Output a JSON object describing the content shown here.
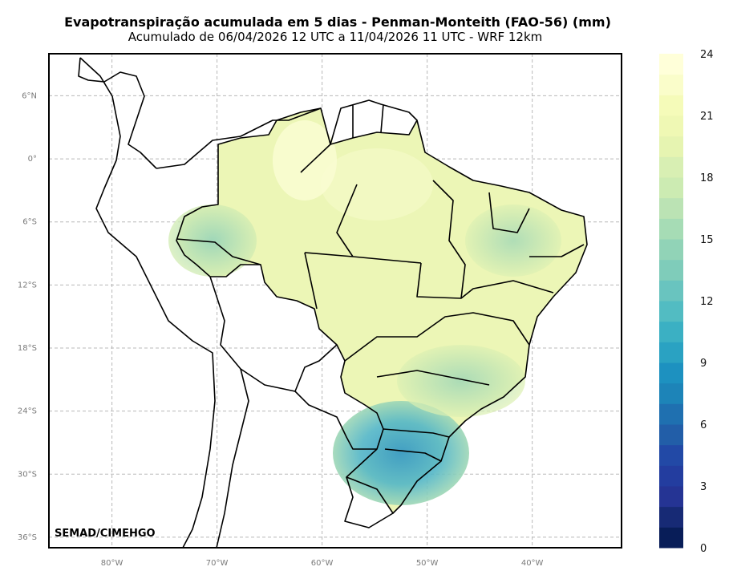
{
  "chart_data": {
    "type": "heatmap",
    "title": "Evapotranspiração acumulada em 5 dias - Penman-Monteith (FAO-56) (mm)",
    "subtitle": "Acumulado de 06/04/2026 12 UTC a 11/04/2026 11 UTC - WRF 12km",
    "lon_range": [
      -86,
      -31.5
    ],
    "lat_range": [
      -37,
      10
    ],
    "lat_ticks": [
      {
        "value": 6,
        "label": "6°N"
      },
      {
        "value": 0,
        "label": "0°"
      },
      {
        "value": -6,
        "label": "6°S"
      },
      {
        "value": -12,
        "label": "12°S"
      },
      {
        "value": -18,
        "label": "18°S"
      },
      {
        "value": -24,
        "label": "24°S"
      },
      {
        "value": -30,
        "label": "30°S"
      },
      {
        "value": -36,
        "label": "36°S"
      }
    ],
    "lon_ticks": [
      {
        "value": -80,
        "label": "80°W"
      },
      {
        "value": -70,
        "label": "70°W"
      },
      {
        "value": -60,
        "label": "60°W"
      },
      {
        "value": -50,
        "label": "50°W"
      },
      {
        "value": -40,
        "label": "40°W"
      }
    ],
    "grid": true,
    "colorbar": {
      "min": 0,
      "max": 24,
      "step": 1,
      "ticks": [
        0,
        3,
        6,
        9,
        12,
        15,
        18,
        21,
        24
      ],
      "colors": [
        "#081d58",
        "#172a75",
        "#253494",
        "#233d9f",
        "#2249a6",
        "#225ea8",
        "#1f70b0",
        "#1d84b8",
        "#1d91c0",
        "#2aa2c2",
        "#3bb0c3",
        "#52bcc2",
        "#69c4bf",
        "#7fccba",
        "#91d3b7",
        "#a6dcb5",
        "#bbe3b4",
        "#ccebb2",
        "#d8efb3",
        "#e6f4b1",
        "#eff8b4",
        "#f5fbb9",
        "#fafdca",
        "#ffffd9"
      ]
    },
    "credit": "SEMAD/CIMEHGO"
  }
}
